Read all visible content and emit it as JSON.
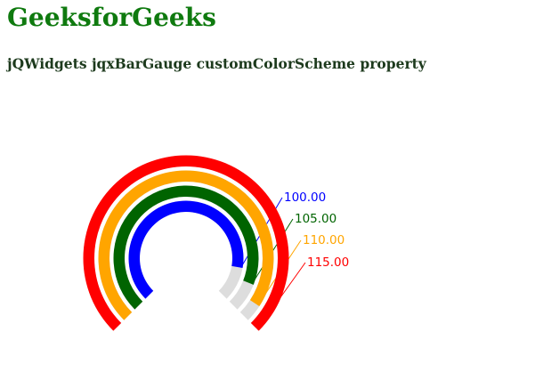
{
  "page": {
    "title": "GeeksforGeeks",
    "subtitle": "jQWidgets jqxBarGauge customColorScheme property"
  },
  "chart_data": {
    "type": "bar-gauge",
    "start_angle_deg": 225,
    "end_angle_deg": -45,
    "max": 115,
    "background_color": "#dddddd",
    "label_format": "fixed-2",
    "series": [
      {
        "value": 100,
        "label": "100.00",
        "color": "#0000ff"
      },
      {
        "value": 105,
        "label": "105.00",
        "color": "#006400"
      },
      {
        "value": 110,
        "label": "110.00",
        "color": "#ffa500"
      },
      {
        "value": 115,
        "label": "115.00",
        "color": "#ff0000"
      }
    ]
  }
}
